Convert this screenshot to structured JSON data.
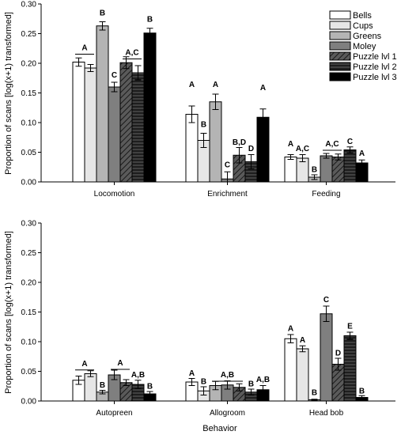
{
  "x_axis_label": "Behavior",
  "y_axis_label": "Proportion of scans [log(x+1) transformed]",
  "legend": [
    {
      "name": "Bells",
      "fill": "#ffffff",
      "hatch": false
    },
    {
      "name": "Cups",
      "fill": "#e6e6e6",
      "hatch": false
    },
    {
      "name": "Greens",
      "fill": "#b4b4b4",
      "hatch": false
    },
    {
      "name": "Moley",
      "fill": "#7f7f7f",
      "hatch": false
    },
    {
      "name": "Puzzle lvl 1",
      "fill": "#555555",
      "hatch": "diagonal"
    },
    {
      "name": "Puzzle lvl 2",
      "fill": "#222222",
      "hatch": "horizontal"
    },
    {
      "name": "Puzzle lvl 3",
      "fill": "#000000",
      "hatch": false
    }
  ],
  "chart_data": [
    {
      "type": "bar",
      "ylim": [
        0,
        0.3
      ],
      "yticks": [
        "0.00",
        "0.05",
        "0.10",
        "0.15",
        "0.20",
        "0.25",
        "0.30"
      ],
      "categories": [
        "Locomotion",
        "Enrichment",
        "Feeding"
      ],
      "series": [
        {
          "name": "Bells",
          "values": [
            0.202,
            0.114,
            0.042
          ],
          "errors": [
            0.007,
            0.014,
            0.004
          ]
        },
        {
          "name": "Cups",
          "values": [
            0.192,
            0.07,
            0.04
          ],
          "errors": [
            0.006,
            0.012,
            0.006
          ]
        },
        {
          "name": "Greens",
          "values": [
            0.263,
            0.135,
            0.008
          ],
          "errors": [
            0.007,
            0.013,
            0.004
          ]
        },
        {
          "name": "Moley",
          "values": [
            0.16,
            0.005,
            0.044
          ],
          "errors": [
            0.008,
            0.012,
            0.004
          ]
        },
        {
          "name": "Puzzle lvl 1",
          "values": [
            0.201,
            0.045,
            0.042
          ],
          "errors": [
            0.01,
            0.013,
            0.005
          ]
        },
        {
          "name": "Puzzle lvl 2",
          "values": [
            0.184,
            0.034,
            0.054
          ],
          "errors": [
            0.012,
            0.012,
            0.005
          ]
        },
        {
          "name": "Puzzle lvl 3",
          "values": [
            0.251,
            0.109,
            0.032
          ],
          "errors": [
            0.008,
            0.014,
            0.005
          ]
        }
      ],
      "annotations": [
        {
          "group": 0,
          "bars": [
            0,
            1
          ],
          "text": "A",
          "y": 0.222
        },
        {
          "group": 0,
          "bars": [
            2
          ],
          "text": "B",
          "y": 0.281
        },
        {
          "group": 0,
          "bars": [
            3
          ],
          "text": "C",
          "y": 0.176
        },
        {
          "group": 0,
          "bars": [
            4,
            5
          ],
          "text": "A,C",
          "y": 0.214
        },
        {
          "group": 0,
          "bars": [
            6
          ],
          "text": "B",
          "y": 0.27
        },
        {
          "group": 1,
          "bars": [
            0
          ],
          "text": "A",
          "y": 0.16
        },
        {
          "group": 1,
          "bars": [
            1
          ],
          "text": "B",
          "y": 0.093
        },
        {
          "group": 1,
          "bars": [
            2
          ],
          "text": "A",
          "y": 0.16
        },
        {
          "group": 1,
          "bars": [
            3
          ],
          "text": "C",
          "y": 0.025
        },
        {
          "group": 1,
          "bars": [
            4
          ],
          "text": "B,D",
          "y": 0.063
        },
        {
          "group": 1,
          "bars": [
            5
          ],
          "text": "D",
          "y": 0.052
        },
        {
          "group": 1,
          "bars": [
            6
          ],
          "text": "A",
          "y": 0.155
        },
        {
          "group": 2,
          "bars": [
            0
          ],
          "text": "A",
          "y": 0.06
        },
        {
          "group": 2,
          "bars": [
            1
          ],
          "text": "A,C",
          "y": 0.052
        },
        {
          "group": 2,
          "bars": [
            2
          ],
          "text": "B",
          "y": 0.017
        },
        {
          "group": 2,
          "bars": [
            3,
            4
          ],
          "text": "A,C",
          "y": 0.06
        },
        {
          "group": 2,
          "bars": [
            5
          ],
          "text": "C",
          "y": 0.064
        },
        {
          "group": 2,
          "bars": [
            6
          ],
          "text": "A",
          "y": 0.044
        }
      ]
    },
    {
      "type": "bar",
      "ylim": [
        0,
        0.3
      ],
      "yticks": [
        "0.00",
        "0.05",
        "0.10",
        "0.15",
        "0.20",
        "0.25",
        "0.30"
      ],
      "categories": [
        "Autopreen",
        "Allogroom",
        "Head bob"
      ],
      "series": [
        {
          "name": "Bells",
          "values": [
            0.035,
            0.032,
            0.105
          ],
          "errors": [
            0.007,
            0.006,
            0.007
          ]
        },
        {
          "name": "Cups",
          "values": [
            0.046,
            0.017,
            0.088
          ],
          "errors": [
            0.005,
            0.007,
            0.005
          ]
        },
        {
          "name": "Greens",
          "values": [
            0.015,
            0.026,
            0.002
          ],
          "errors": [
            0.003,
            0.007,
            0.001
          ]
        },
        {
          "name": "Moley",
          "values": [
            0.044,
            0.027,
            0.147
          ],
          "errors": [
            0.008,
            0.007,
            0.013
          ]
        },
        {
          "name": "Puzzle lvl 1",
          "values": [
            0.031,
            0.023,
            0.062
          ],
          "errors": [
            0.005,
            0.006,
            0.01
          ]
        },
        {
          "name": "Puzzle lvl 2",
          "values": [
            0.028,
            0.015,
            0.11
          ],
          "errors": [
            0.007,
            0.005,
            0.006
          ]
        },
        {
          "name": "Puzzle lvl 3",
          "values": [
            0.012,
            0.019,
            0.006
          ],
          "errors": [
            0.004,
            0.007,
            0.003
          ]
        }
      ],
      "annotations": [
        {
          "group": 0,
          "bars": [
            0,
            1
          ],
          "text": "A",
          "y": 0.059
        },
        {
          "group": 0,
          "bars": [
            2
          ],
          "text": "B",
          "y": 0.023
        },
        {
          "group": 0,
          "bars": [
            3,
            4
          ],
          "text": "A",
          "y": 0.06
        },
        {
          "group": 0,
          "bars": [
            5
          ],
          "text": "A,B",
          "y": 0.04
        },
        {
          "group": 0,
          "bars": [
            6
          ],
          "text": "B",
          "y": 0.021
        },
        {
          "group": 1,
          "bars": [
            0
          ],
          "text": "A",
          "y": 0.043
        },
        {
          "group": 1,
          "bars": [
            1
          ],
          "text": "B",
          "y": 0.029
        },
        {
          "group": 1,
          "bars": [
            2,
            3,
            4
          ],
          "text": "A,B",
          "y": 0.04
        },
        {
          "group": 1,
          "bars": [
            5
          ],
          "text": "B",
          "y": 0.025
        },
        {
          "group": 1,
          "bars": [
            6
          ],
          "text": "A,B",
          "y": 0.032
        },
        {
          "group": 2,
          "bars": [
            0
          ],
          "text": "A",
          "y": 0.118
        },
        {
          "group": 2,
          "bars": [
            1
          ],
          "text": "A",
          "y": 0.099
        },
        {
          "group": 2,
          "bars": [
            2
          ],
          "text": "B",
          "y": 0.01
        },
        {
          "group": 2,
          "bars": [
            3
          ],
          "text": "C",
          "y": 0.167
        },
        {
          "group": 2,
          "bars": [
            4
          ],
          "text": "D",
          "y": 0.077
        },
        {
          "group": 2,
          "bars": [
            5
          ],
          "text": "E",
          "y": 0.122
        },
        {
          "group": 2,
          "bars": [
            6
          ],
          "text": "B",
          "y": 0.013
        }
      ]
    }
  ]
}
